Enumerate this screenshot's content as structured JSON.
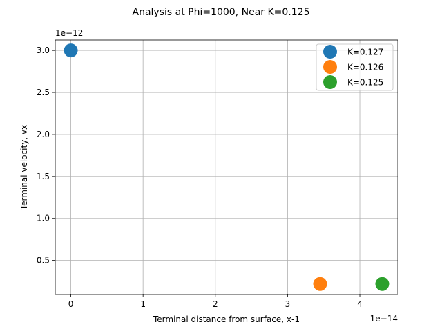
{
  "chart_data": {
    "type": "scatter",
    "title": "Analysis at Phi=1000, Near K=0.125",
    "xlabel": "Terminal distance from surface, x-1",
    "ylabel": "Terminal velocity, vx",
    "x_offset_text": "1e−14",
    "y_offset_text": "1e−12",
    "x_scale_exponent": -14,
    "y_scale_exponent": -12,
    "xlim": [
      -0.2155,
      4.5255
    ],
    "ylim": [
      0.0945,
      3.1245
    ],
    "x_ticks": [
      0,
      1,
      2,
      3,
      4
    ],
    "x_tick_labels": [
      "0",
      "1",
      "2",
      "3",
      "4"
    ],
    "y_ticks": [
      0.5,
      1.0,
      1.5,
      2.0,
      2.5,
      3.0
    ],
    "y_tick_labels": [
      "0.5",
      "1.0",
      "1.5",
      "2.0",
      "2.5",
      "3.0"
    ],
    "grid": true,
    "legend_position": "top-right",
    "series": [
      {
        "name": "K=0.127",
        "color": "#1f77b4",
        "points": [
          {
            "x": 0.0,
            "y": 3.0
          }
        ]
      },
      {
        "name": "K=0.126",
        "color": "#ff7f0e",
        "points": [
          {
            "x": 3.45,
            "y": 0.22
          }
        ]
      },
      {
        "name": "K=0.125",
        "color": "#2ca02c",
        "points": [
          {
            "x": 4.31,
            "y": 0.22
          }
        ]
      }
    ]
  }
}
